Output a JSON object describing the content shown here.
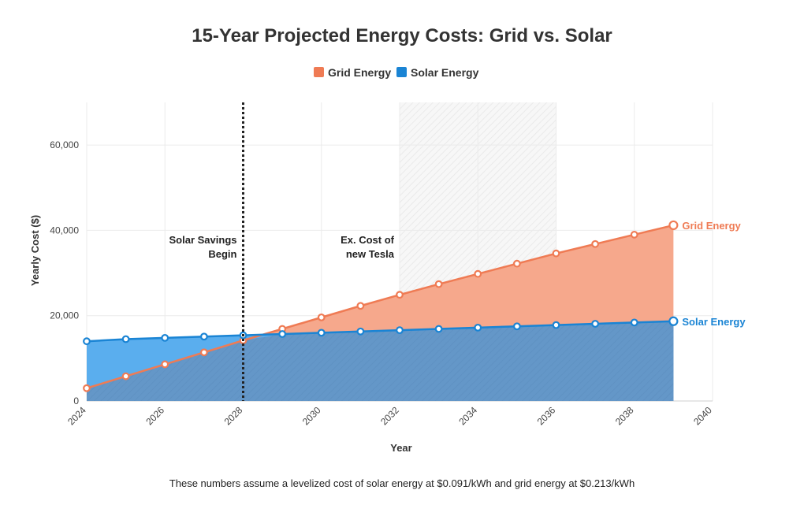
{
  "chart_data": {
    "type": "area",
    "title": "15-Year Projected Energy Costs: Grid vs. Solar",
    "xlabel": "Year",
    "ylabel": "Yearly Cost ($)",
    "xlim": [
      2024,
      2040
    ],
    "ylim": [
      0,
      70000
    ],
    "x_ticks": [
      "2024",
      "2026",
      "2028",
      "2030",
      "2032",
      "2034",
      "2036",
      "2038",
      "2040"
    ],
    "y_ticks": [
      "0",
      "20,000",
      "40,000",
      "60,000"
    ],
    "grid": true,
    "legend_position": "top-center",
    "x": [
      2024,
      2025,
      2026,
      2027,
      2028,
      2029,
      2030,
      2031,
      2032,
      2033,
      2034,
      2035,
      2036,
      2037,
      2038,
      2039
    ],
    "series": [
      {
        "name": "Grid Energy",
        "color": "#ef7b54",
        "fill": "#f6a88c",
        "values": [
          3000,
          5800,
          8600,
          11400,
          14200,
          16900,
          19600,
          22300,
          24900,
          27400,
          29800,
          32200,
          34600,
          36800,
          39000,
          41200
        ]
      },
      {
        "name": "Solar Energy",
        "color": "#1a84d4",
        "fill": "#5aaeee",
        "values": [
          14000,
          14500,
          14800,
          15100,
          15400,
          15700,
          16000,
          16300,
          16600,
          16900,
          17200,
          17500,
          17800,
          18100,
          18400,
          18700
        ]
      }
    ],
    "annotations": [
      {
        "text_lines": [
          "Solar Savings",
          "Begin"
        ],
        "x": 2028,
        "type": "vertical-dotted-line"
      },
      {
        "text_lines": [
          "Ex. Cost of",
          "new Tesla"
        ],
        "x_range": [
          2032,
          2036
        ],
        "type": "shaded-band"
      }
    ],
    "end_labels": [
      "Grid Energy",
      "Solar Energy"
    ],
    "overlap_color": "#6497c8",
    "note": "These numbers assume a levelized cost of solar energy at $0.091/kWh and grid energy at $0.213/kWh"
  }
}
